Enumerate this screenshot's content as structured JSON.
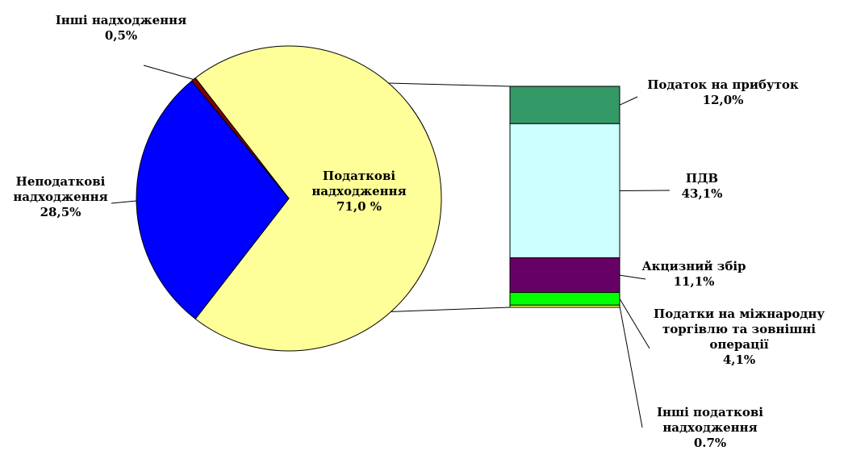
{
  "chart_data": {
    "type": "pie",
    "variant": "pie-of-bar",
    "title": "",
    "pie": {
      "slices": [
        {
          "label_lines": [
            "Податкові",
            "надходження"
          ],
          "value_label": "71,0 %",
          "value": 71.0,
          "color": "#FFFF99"
        },
        {
          "label_lines": [
            "Неподаткові",
            "надходження"
          ],
          "value_label": "28,5%",
          "value": 28.5,
          "color": "#0000FF"
        },
        {
          "label_lines": [
            "Інші надходження"
          ],
          "value_label": "0,5%",
          "value": 0.5,
          "color": "#800000"
        }
      ]
    },
    "bar": {
      "parent_slice": "Податкові надходження",
      "segments": [
        {
          "label_lines": [
            "Податок на прибуток"
          ],
          "value_label": "12,0%",
          "value": 12.0,
          "color": "#339966"
        },
        {
          "label_lines": [
            "ПДВ"
          ],
          "value_label": "43,1%",
          "value": 43.1,
          "color": "#CCFFFF"
        },
        {
          "label_lines": [
            "Акцизний збір"
          ],
          "value_label": "11,1%",
          "value": 11.1,
          "color": "#660066"
        },
        {
          "label_lines": [
            "Податки на міжнародну",
            "торгівлю та зовнішні",
            "операції"
          ],
          "value_label": "4,1%",
          "value": 4.1,
          "color": "#00FF00"
        },
        {
          "label_lines": [
            "Інші податкові",
            "надходження"
          ],
          "value_label": "0.7%",
          "value": 0.7,
          "color": "#FFFF66"
        }
      ]
    }
  }
}
